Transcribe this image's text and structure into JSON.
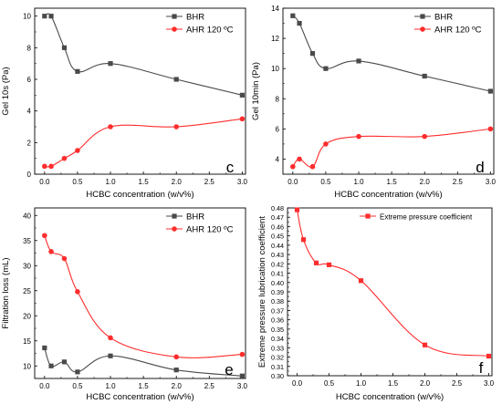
{
  "chart_data": [
    {
      "type": "line",
      "xlabel": "HCBC concentration (w/v%)",
      "ylabel": "Gel 10s (Pa)",
      "panel_letter": "c",
      "xlim": [
        -0.15,
        3.05
      ],
      "ylim": [
        0,
        10.5
      ],
      "xticks": [
        0.0,
        0.5,
        1.0,
        1.5,
        2.0,
        2.5,
        3.0
      ],
      "xtick_labels": [
        "0.0",
        "0.5",
        "1.0",
        "1.5",
        "2.0",
        "2.5",
        "3.0"
      ],
      "yticks": [
        0,
        2,
        4,
        6,
        8,
        10
      ],
      "ytick_labels": [
        "0",
        "2",
        "4",
        "6",
        "8",
        "10"
      ],
      "legend_position": "top-right",
      "series": [
        {
          "name": "BHR",
          "color": "#4a4a4a",
          "marker": "square",
          "x": [
            0,
            0.1,
            0.3,
            0.5,
            1.0,
            2.0,
            3.0
          ],
          "y": [
            10.0,
            10.0,
            8.0,
            6.5,
            7.0,
            6.0,
            5.0
          ]
        },
        {
          "name": "AHR 120 ºC",
          "color": "#ff2d2d",
          "marker": "circle",
          "x": [
            0,
            0.1,
            0.3,
            0.5,
            1.0,
            2.0,
            3.0
          ],
          "y": [
            0.5,
            0.5,
            1.0,
            1.5,
            3.0,
            3.0,
            3.5
          ]
        }
      ]
    },
    {
      "type": "line",
      "xlabel": "HCBC concentration (w/v%)",
      "ylabel": "Gel 10min (Pa)",
      "panel_letter": "d",
      "xlim": [
        -0.15,
        3.05
      ],
      "ylim": [
        3.0,
        14.0
      ],
      "xticks": [
        0.0,
        0.5,
        1.0,
        1.5,
        2.0,
        2.5,
        3.0
      ],
      "xtick_labels": [
        "0.0",
        "0.5",
        "1.0",
        "1.5",
        "2.0",
        "2.5",
        "3.0"
      ],
      "yticks": [
        4,
        6,
        8,
        10,
        12,
        14
      ],
      "ytick_labels": [
        "4",
        "6",
        "8",
        "10",
        "12",
        "14"
      ],
      "legend_position": "top-right",
      "series": [
        {
          "name": "BHR",
          "color": "#4a4a4a",
          "marker": "square",
          "x": [
            0,
            0.1,
            0.3,
            0.5,
            1.0,
            2.0,
            3.0
          ],
          "y": [
            13.5,
            13.0,
            11.0,
            10.0,
            10.5,
            9.5,
            8.5
          ]
        },
        {
          "name": "AHR 120 ºC",
          "color": "#ff2d2d",
          "marker": "circle",
          "x": [
            0,
            0.1,
            0.3,
            0.5,
            1.0,
            2.0,
            3.0
          ],
          "y": [
            3.5,
            4.0,
            3.5,
            5.0,
            5.5,
            5.5,
            6.0
          ]
        }
      ]
    },
    {
      "type": "line",
      "xlabel": "HCBC concentration (w/v%)",
      "ylabel": "Filtration loss (mL)",
      "panel_letter": "e",
      "xlim": [
        -0.15,
        3.05
      ],
      "ylim": [
        7.5,
        41.5
      ],
      "xticks": [
        0.0,
        0.5,
        1.0,
        1.5,
        2.0,
        2.5,
        3.0
      ],
      "xtick_labels": [
        "0.0",
        "0.5",
        "1.0",
        "1.5",
        "2.0",
        "2.5",
        "3.0"
      ],
      "yticks": [
        10,
        15,
        20,
        25,
        30,
        35,
        40
      ],
      "ytick_labels": [
        "10",
        "15",
        "20",
        "25",
        "30",
        "35",
        "40"
      ],
      "legend_position": "top-right",
      "series": [
        {
          "name": "BHR",
          "color": "#4a4a4a",
          "marker": "square",
          "x": [
            0,
            0.1,
            0.3,
            0.5,
            1.0,
            2.0,
            3.0
          ],
          "y": [
            13.6,
            10.0,
            10.8,
            8.8,
            12.0,
            9.2,
            8.0
          ]
        },
        {
          "name": "AHR 120 ºC",
          "color": "#ff2d2d",
          "marker": "circle",
          "x": [
            0,
            0.1,
            0.3,
            0.5,
            1.0,
            2.0,
            3.0
          ],
          "y": [
            36.0,
            32.8,
            31.4,
            24.8,
            15.6,
            11.8,
            12.3
          ]
        }
      ]
    },
    {
      "type": "line",
      "xlabel": "HCBC concentration (w/v%)",
      "ylabel": "Extreme pressure lubrication coefficient",
      "panel_letter": "f",
      "xlim": [
        -0.15,
        3.05
      ],
      "ylim": [
        0.3,
        0.48
      ],
      "xticks": [
        0.0,
        0.5,
        1.0,
        1.5,
        2.0,
        2.5,
        3.0
      ],
      "xtick_labels": [
        "0.0",
        "0.5",
        "1.0",
        "1.5",
        "2.0",
        "2.5",
        "3.0"
      ],
      "yticks": [
        0.3,
        0.31,
        0.32,
        0.33,
        0.34,
        0.35,
        0.36,
        0.37,
        0.38,
        0.39,
        0.4,
        0.41,
        0.42,
        0.43,
        0.44,
        0.45,
        0.46,
        0.47,
        0.48
      ],
      "ytick_labels": [
        "0.30",
        "0.31",
        "0.32",
        "0.33",
        "0.34",
        "0.35",
        "0.36",
        "0.37",
        "0.38",
        "0.39",
        "0.40",
        "0.41",
        "0.42",
        "0.43",
        "0.44",
        "0.45",
        "0.46",
        "0.47",
        "0.48"
      ],
      "legend_position": "top-right",
      "series": [
        {
          "name": "Extreme pressure coefficient",
          "color": "#ff2d2d",
          "marker": "square",
          "x": [
            0,
            0.1,
            0.3,
            0.5,
            1.0,
            2.0,
            3.0
          ],
          "y": [
            0.478,
            0.446,
            0.421,
            0.419,
            0.402,
            0.333,
            0.321
          ]
        }
      ]
    }
  ]
}
